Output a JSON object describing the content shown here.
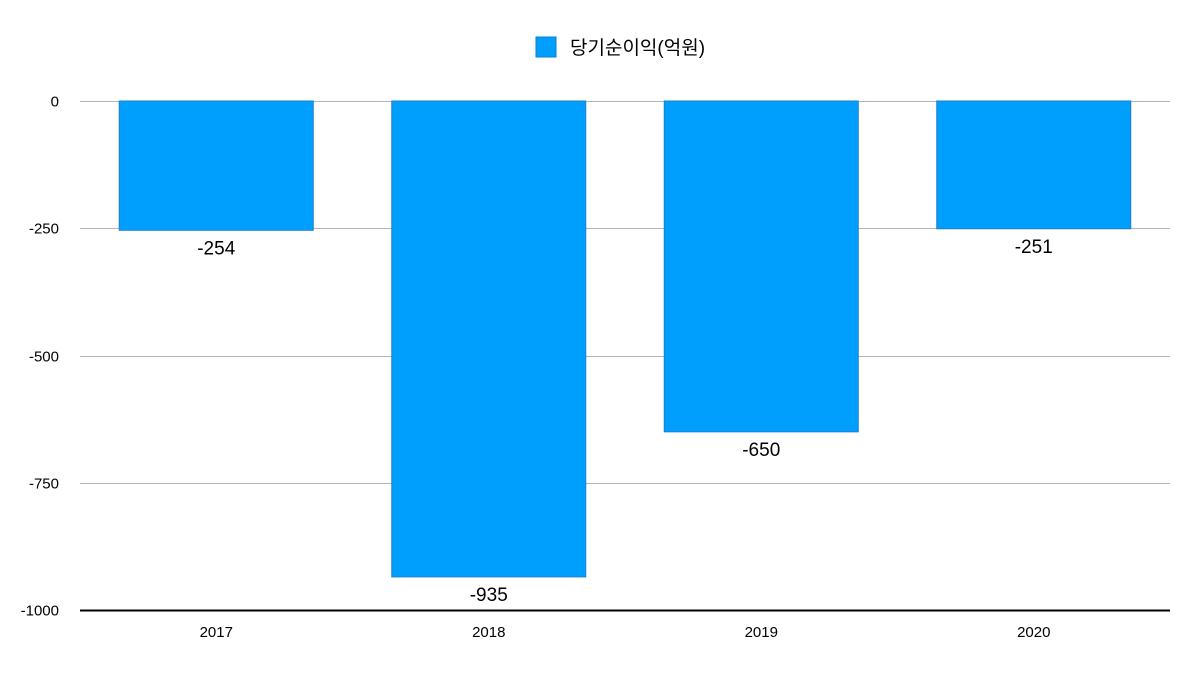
{
  "chart_data": {
    "type": "bar",
    "categories": [
      "2017",
      "2018",
      "2019",
      "2020"
    ],
    "series": [
      {
        "name": "당기순이익(억원)",
        "values": [
          -254,
          -935,
          -650,
          -251
        ],
        "color": "#009ffd"
      }
    ],
    "data_labels": [
      "-254",
      "-935",
      "-650",
      "-251"
    ],
    "y_ticks": [
      0,
      -250,
      -500,
      -750,
      -1000
    ],
    "y_tick_labels": [
      "0",
      "-250",
      "-500",
      "-750",
      "-1000"
    ],
    "ylim": [
      -1000,
      0
    ],
    "grid": true,
    "legend_position": "top-center",
    "title": "",
    "xlabel": "",
    "ylabel": ""
  }
}
